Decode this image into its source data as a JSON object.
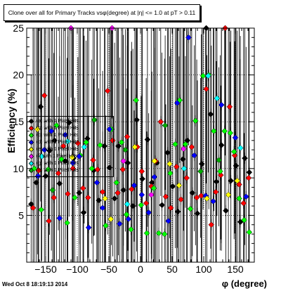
{
  "title": "Clone over all for Primary Tracks vsφ(degree) at |η| <= 1.0 at pT > 0.11",
  "ylabel": "Efficiency (%)",
  "xlabel": "φ (degree)",
  "timestamp": "Wed Oct  8 18:19:13 2014",
  "legend": {
    "entries": [
      {
        "text": "(a) with 1 Pixel Hits",
        "color": "#000000"
      },
      {
        "text": "(b) with 1 Pixel Hits",
        "color": "#ff0000"
      },
      {
        "text": "(c) with 1 Pixel Hits",
        "color": "#00ff00"
      },
      {
        "text": "(d) with 1 Pixel Hits",
        "color": "#0000ff"
      },
      {
        "text": "(e) with 1 Pixel Hits",
        "color": "#ffff00"
      },
      {
        "text": "(f) with 1 Pixel Hits",
        "color": "#ff00ff"
      },
      {
        "text": "(g) with 1 Pixel Hits",
        "color": "#00ffff"
      },
      {
        "text": "(h) with 1 Pixel Hits",
        "color": "#00aa00"
      }
    ]
  },
  "chart_data": {
    "type": "scatter",
    "title": "Clone over all for Primary Tracks vsφ(degree) at |η| <= 1.0 at pT > 0.11",
    "xlabel": "φ (degree)",
    "ylabel": "Efficiency (%)",
    "xlim": [
      -180,
      180
    ],
    "ylim": [
      0,
      25
    ],
    "xticks": [
      -150,
      -100,
      -50,
      0,
      50,
      100,
      150
    ],
    "yticks": [
      5,
      10,
      15,
      20,
      25
    ],
    "grid": true,
    "legend_position": "left",
    "series": [
      {
        "name": "(a)",
        "color": "#000000",
        "points": [
          [
            -173,
            6.2
          ],
          [
            -165,
            8.5
          ],
          [
            -158,
            16.6
          ],
          [
            -150,
            9.2
          ],
          [
            -144,
            11.9
          ],
          [
            -136,
            13.0
          ],
          [
            -128,
            8.4
          ],
          [
            -119,
            10.8
          ],
          [
            -113,
            14.9
          ],
          [
            -106,
            11.1
          ],
          [
            -97,
            7.4
          ],
          [
            -90,
            5.3
          ],
          [
            -84,
            13.2
          ],
          [
            -74,
            9.8
          ],
          [
            -66,
            6.6
          ],
          [
            -57,
            12.4
          ],
          [
            -49,
            10.1
          ],
          [
            -41,
            6.8
          ],
          [
            -35,
            12.4
          ],
          [
            -27,
            7.7
          ],
          [
            -20,
            10.6
          ],
          [
            -12,
            6.0
          ],
          [
            -6,
            15.2
          ],
          [
            3,
            8.9
          ],
          [
            11,
            13.1
          ],
          [
            18,
            8.5
          ],
          [
            26,
            10.6
          ],
          [
            34,
            6.1
          ],
          [
            43,
            11.7
          ],
          [
            51,
            8.1
          ],
          [
            59,
            5.4
          ],
          [
            67,
            11.0
          ],
          [
            74,
            13.0
          ],
          [
            82,
            7.4
          ],
          [
            90,
            5.2
          ],
          [
            97,
            10.5
          ],
          [
            104,
            25.0
          ],
          [
            111,
            15.8
          ],
          [
            120,
            8.6
          ],
          [
            128,
            12.5
          ],
          [
            135,
            5.5
          ],
          [
            143,
            8.7
          ],
          [
            151,
            10.3
          ],
          [
            158,
            4.3
          ],
          [
            165,
            11.1
          ],
          [
            172,
            9.6
          ]
        ]
      },
      {
        "name": "(b)",
        "color": "#ff0000",
        "points": [
          [
            -170,
            5.8
          ],
          [
            -161,
            9.8
          ],
          [
            -152,
            17.8
          ],
          [
            -145,
            4.4
          ],
          [
            -137,
            6.9
          ],
          [
            -130,
            9.5
          ],
          [
            -122,
            12.4
          ],
          [
            -115,
            7.3
          ],
          [
            -107,
            10.0
          ],
          [
            -99,
            12.7
          ],
          [
            -91,
            7.9
          ],
          [
            -83,
            6.9
          ],
          [
            -75,
            10.9
          ],
          [
            -68,
            9.9
          ],
          [
            -60,
            7.5
          ],
          [
            -52,
            18.3
          ],
          [
            -44,
            13.0
          ],
          [
            -36,
            7.4
          ],
          [
            -28,
            9.9
          ],
          [
            -21,
            13.4
          ],
          [
            -14,
            7.8
          ],
          [
            -5,
            12.3
          ],
          [
            2,
            9.7
          ],
          [
            9,
            6.3
          ],
          [
            17,
            8.1
          ],
          [
            24,
            10.8
          ],
          [
            32,
            15.0
          ],
          [
            40,
            7.0
          ],
          [
            48,
            5.8
          ],
          [
            57,
            10.2
          ],
          [
            64,
            6.7
          ],
          [
            73,
            9.0
          ],
          [
            81,
            12.3
          ],
          [
            89,
            6.9
          ],
          [
            96,
            7.1
          ],
          [
            104,
            18.5
          ],
          [
            112,
            4.0
          ],
          [
            119,
            7.5
          ],
          [
            127,
            9.3
          ],
          [
            134,
            25.0
          ],
          [
            141,
            16.6
          ],
          [
            149,
            11.4
          ],
          [
            156,
            8.3
          ],
          [
            163,
            6.3
          ],
          [
            171,
            9.0
          ]
        ]
      },
      {
        "name": "(c)",
        "color": "#00ff00",
        "points": [
          [
            -168,
            10.0
          ],
          [
            -157,
            5.6
          ],
          [
            -146,
            9.9
          ],
          [
            -133,
            14.6
          ],
          [
            -125,
            11.0
          ],
          [
            -116,
            4.2
          ],
          [
            -104,
            6.9
          ],
          [
            -95,
            11.4
          ],
          [
            -86,
            12.8
          ],
          [
            -77,
            10.0
          ],
          [
            -64,
            12.5
          ],
          [
            -55,
            3.9
          ],
          [
            -46,
            14.2
          ],
          [
            -38,
            8.5
          ],
          [
            -30,
            12.8
          ],
          [
            -22,
            5.1
          ],
          [
            -15,
            3.5
          ],
          [
            -7,
            17.3
          ],
          [
            1,
            6.1
          ],
          [
            10,
            3.1
          ],
          [
            21,
            7.9
          ],
          [
            29,
            3.1
          ],
          [
            38,
            3.0
          ],
          [
            47,
            9.5
          ],
          [
            55,
            12.6
          ],
          [
            62,
            17.3
          ],
          [
            71,
            12.6
          ],
          [
            79,
            5.7
          ],
          [
            87,
            15.1
          ],
          [
            99,
            19.9
          ],
          [
            108,
            20.0
          ],
          [
            116,
            14.0
          ],
          [
            126,
            9.7
          ],
          [
            133,
            14.0
          ],
          [
            142,
            13.8
          ],
          [
            148,
            11.8
          ],
          [
            156,
            6.8
          ],
          [
            164,
            4.5
          ],
          [
            172,
            3.2
          ]
        ]
      },
      {
        "name": "(d)",
        "color": "#0000ff",
        "points": [
          [
            -162,
            9.2
          ],
          [
            -152,
            12.0
          ],
          [
            -141,
            14.0
          ],
          [
            -128,
            4.7
          ],
          [
            -119,
            13.6
          ],
          [
            -107,
            10.6
          ],
          [
            -97,
            11.3
          ],
          [
            -82,
            3.7
          ],
          [
            -69,
            8.5
          ],
          [
            -60,
            5.8
          ],
          [
            -49,
            14.2
          ],
          [
            -33,
            4.1
          ],
          [
            -19,
            4.6
          ],
          [
            -10,
            8.2
          ],
          [
            2,
            7.2
          ],
          [
            13,
            5.3
          ],
          [
            22,
            9.1
          ],
          [
            44,
            4.4
          ],
          [
            58,
            17.0
          ],
          [
            76,
            24.0
          ],
          [
            85,
            11.4
          ],
          [
            103,
            7.1
          ],
          [
            115,
            6.5
          ],
          [
            128,
            16.8
          ],
          [
            150,
            13.3
          ],
          [
            167,
            7.0
          ]
        ]
      },
      {
        "name": "(e)",
        "color": "#ffff00",
        "points": [
          [
            -163,
            14.2
          ],
          [
            -108,
            11.2
          ],
          [
            -56,
            6.8
          ],
          [
            -47,
            4.6
          ],
          [
            -9,
            12.3
          ],
          [
            22,
            10.8
          ],
          [
            46,
            10.5
          ],
          [
            61,
            8.2
          ],
          [
            105,
            6.8
          ],
          [
            139,
            7.2
          ],
          [
            153,
            8.7
          ]
        ]
      },
      {
        "name": "(f)",
        "color": "#ff00ff",
        "points": [
          [
            -110,
            25.0
          ],
          [
            -45,
            25.0
          ],
          [
            -27,
            10.8
          ],
          [
            17,
            7.2
          ],
          [
            68,
            12.1
          ]
        ]
      },
      {
        "name": "(g)",
        "color": "#00ffff",
        "points": [
          [
            -156,
            11.3
          ],
          [
            -115,
            12.9
          ],
          [
            -89,
            12.3
          ],
          [
            -21,
            6.2
          ],
          [
            69,
            10.0
          ],
          [
            107,
            19.9
          ],
          [
            121,
            17.5
          ],
          [
            158,
            12.2
          ]
        ]
      },
      {
        "name": "(h)",
        "color": "#00aa00",
        "points": [
          [
            -139,
            7.7
          ],
          [
            -73,
            15.2
          ],
          [
            -24,
            12.0
          ],
          [
            39,
            14.6
          ],
          [
            95,
            9.7
          ],
          [
            124,
            10.9
          ]
        ]
      }
    ]
  }
}
